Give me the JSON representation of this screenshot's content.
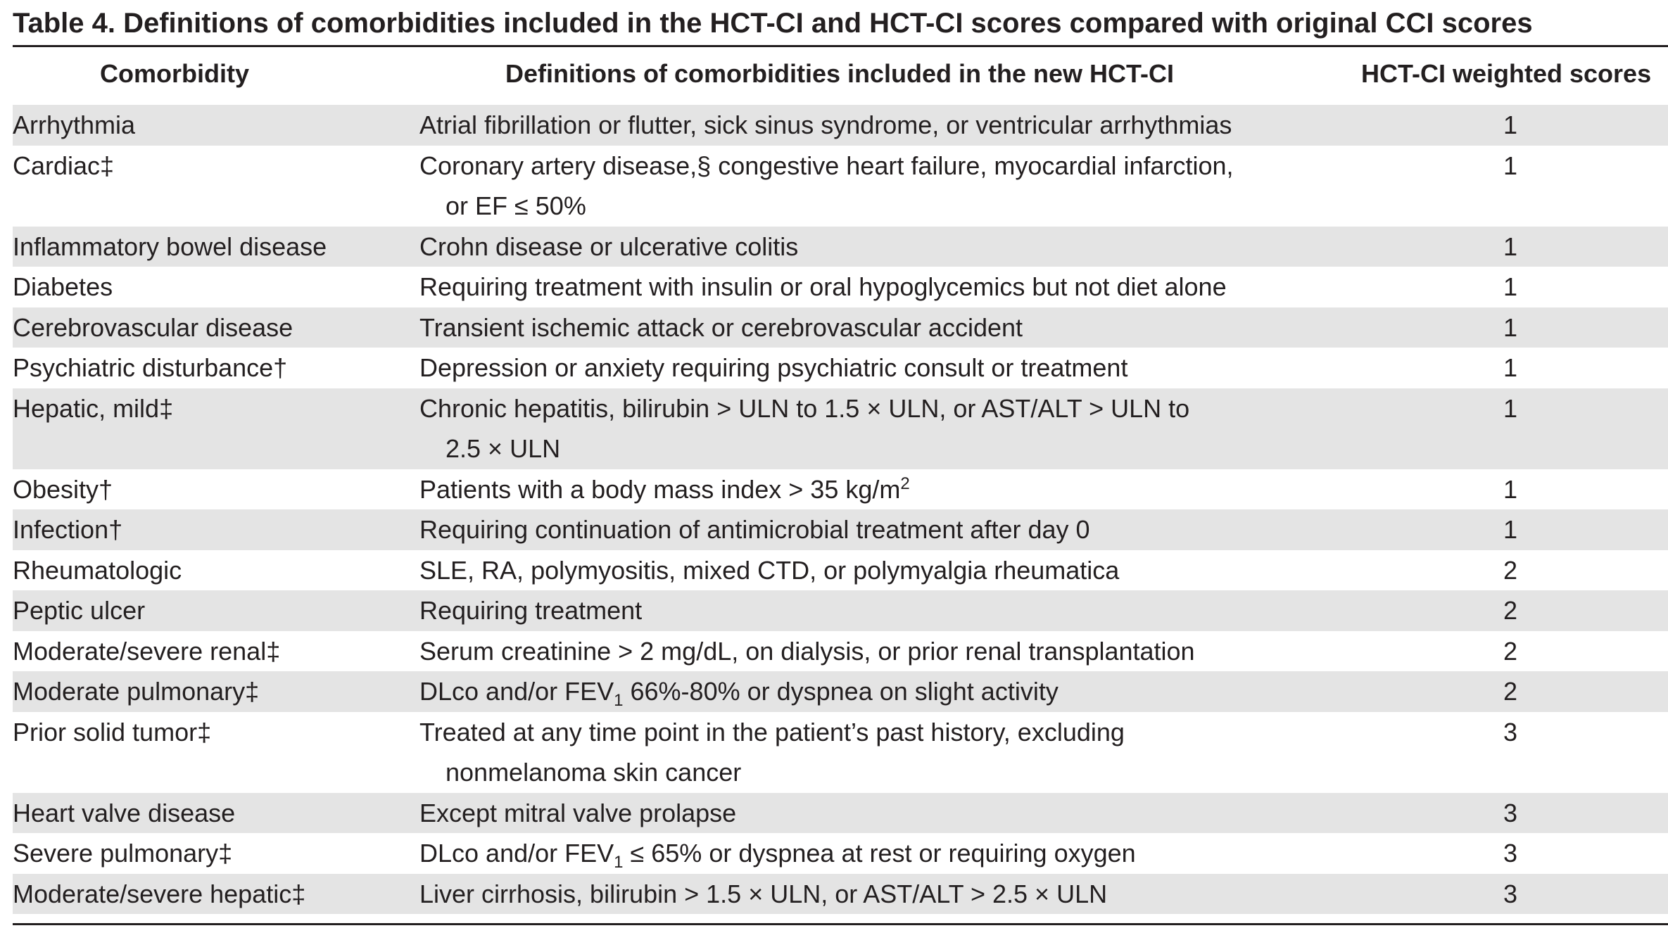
{
  "title": "Table 4. Definitions of comorbidities included in the HCT-CI and HCT-CI scores compared with original CCI scores",
  "headers": {
    "comorbidity": "Comorbidity",
    "definition": "Definitions of comorbidities included in the new HCT-CI",
    "score": "HCT-CI weighted scores"
  },
  "rows": [
    {
      "name": "Arrhythmia",
      "lines": [
        "Atrial fibrillation or flutter, sick sinus syndrome, or ventricular arrhythmias"
      ],
      "score": "1"
    },
    {
      "name": "Cardiac‡",
      "lines": [
        "Coronary artery disease,§ congestive heart failure, myocardial infarction,",
        "or EF ≤ 50%"
      ],
      "score": "1"
    },
    {
      "name": "Inflammatory bowel disease",
      "lines": [
        "Crohn disease or ulcerative colitis"
      ],
      "score": "1"
    },
    {
      "name": "Diabetes",
      "lines": [
        "Requiring treatment with insulin or oral hypoglycemics but not diet alone"
      ],
      "score": "1"
    },
    {
      "name": "Cerebrovascular disease",
      "lines": [
        "Transient ischemic attack or cerebrovascular accident"
      ],
      "score": "1"
    },
    {
      "name": "Psychiatric disturbance†",
      "lines": [
        "Depression or anxiety requiring psychiatric consult or treatment"
      ],
      "score": "1"
    },
    {
      "name": "Hepatic, mild‡",
      "lines": [
        "Chronic hepatitis, bilirubin > ULN to 1.5 × ULN, or AST/ALT > ULN to",
        "2.5 × ULN"
      ],
      "score": "1"
    },
    {
      "name": "Obesity†",
      "lines": [
        "Patients with a body mass index > 35 kg/m"
      ],
      "sup": "2",
      "score": "1"
    },
    {
      "name": "Infection†",
      "lines": [
        "Requiring continuation of antimicrobial treatment after day 0"
      ],
      "score": "1"
    },
    {
      "name": "Rheumatologic",
      "lines": [
        "SLE, RA, polymyositis, mixed CTD, or polymyalgia rheumatica"
      ],
      "score": "2"
    },
    {
      "name": "Peptic ulcer",
      "lines": [
        "Requiring treatment"
      ],
      "score": "2"
    },
    {
      "name": "Moderate/severe renal‡",
      "lines": [
        "Serum creatinine > 2 mg/dL, on dialysis, or prior renal transplantation"
      ],
      "score": "2"
    },
    {
      "name": "Moderate pulmonary‡",
      "pre": "DLco and/or FEV",
      "sub": "1",
      "post": " 66%-80% or dyspnea on slight activity",
      "score": "2"
    },
    {
      "name": "Prior solid tumor‡",
      "lines": [
        "Treated at any time point in the patient’s past history, excluding",
        "nonmelanoma skin cancer"
      ],
      "score": "3"
    },
    {
      "name": "Heart valve disease",
      "lines": [
        "Except mitral valve prolapse"
      ],
      "score": "3"
    },
    {
      "name": "Severe pulmonary‡",
      "pre": "DLco and/or FEV",
      "sub": "1",
      "post": " ≤ 65% or dyspnea at rest or requiring oxygen",
      "score": "3"
    },
    {
      "name": "Moderate/severe hepatic‡",
      "lines": [
        "Liver cirrhosis, bilirubin > 1.5 × ULN, or AST/ALT > 2.5 × ULN"
      ],
      "score": "3"
    }
  ]
}
